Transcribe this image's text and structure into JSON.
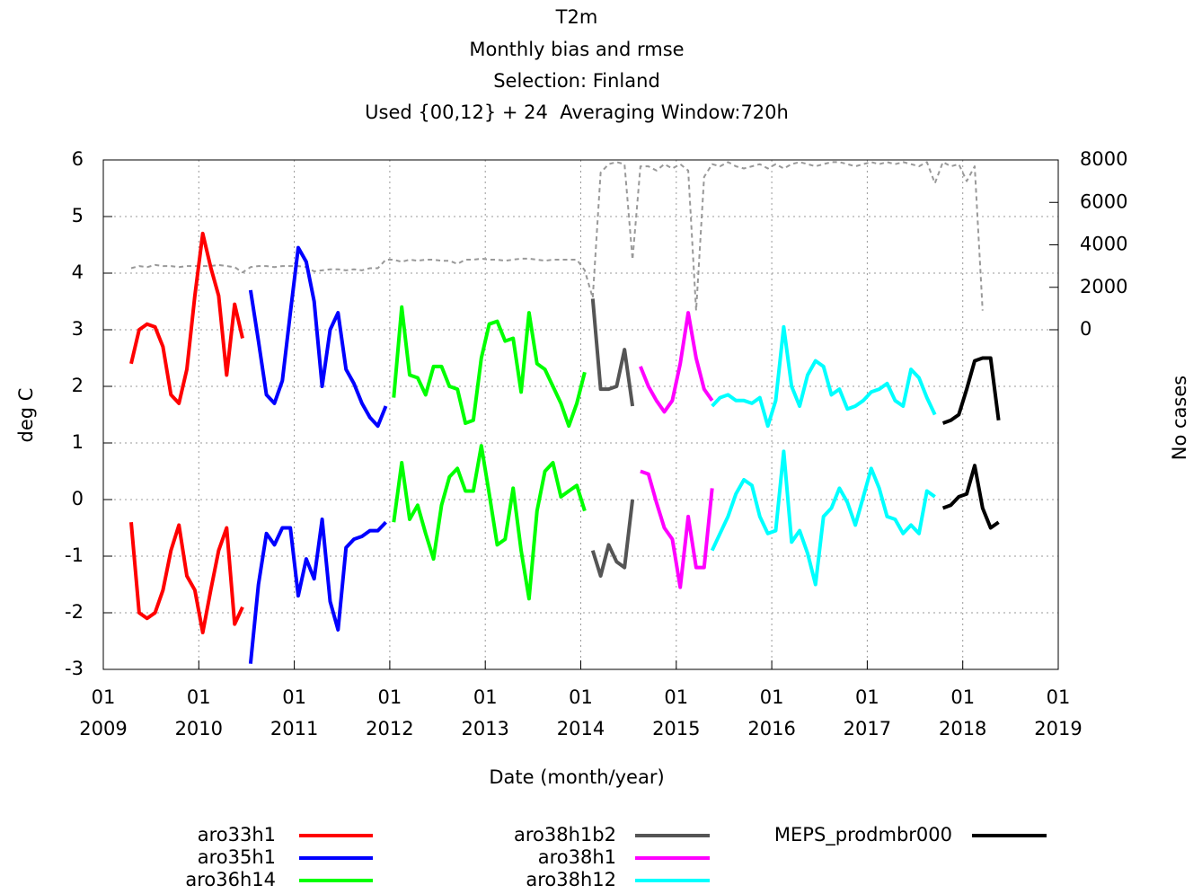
{
  "chart_data": {
    "type": "line",
    "title": [
      "T2m",
      "Monthly bias and rmse",
      "Selection: Finland",
      "Used {00,12} + 24  Averaging Window:720h"
    ],
    "xlabel": "Date (month/year)",
    "ylabel": "deg C",
    "y2label": "No cases",
    "xlim": [
      "2009-01",
      "2019-01"
    ],
    "xticks": [
      {
        "value": "2009-01",
        "label": "01\n2009"
      },
      {
        "value": "2010-01",
        "label": "01\n2010"
      },
      {
        "value": "2011-01",
        "label": "01\n2011"
      },
      {
        "value": "2012-01",
        "label": "01\n2012"
      },
      {
        "value": "2013-01",
        "label": "01\n2013"
      },
      {
        "value": "2014-01",
        "label": "01\n2014"
      },
      {
        "value": "2015-01",
        "label": "01\n2015"
      },
      {
        "value": "2016-01",
        "label": "01\n2016"
      },
      {
        "value": "2017-01",
        "label": "01\n2017"
      },
      {
        "value": "2018-01",
        "label": "01\n2018"
      },
      {
        "value": "2019-01",
        "label": "01\n2019"
      }
    ],
    "ylim": [
      -3,
      6
    ],
    "yticks": [
      -3,
      -2,
      -1,
      0,
      1,
      2,
      3,
      4,
      5,
      6
    ],
    "y2lim": [
      -16000,
      8000
    ],
    "y2ticks": [
      0,
      2000,
      4000,
      6000,
      8000
    ],
    "grid": true,
    "series": [
      {
        "name": "aro33h1",
        "color": "#ff0000",
        "x": [
          "2009-04",
          "2009-05",
          "2009-06",
          "2009-07",
          "2009-08",
          "2009-09",
          "2009-10",
          "2009-11",
          "2009-12",
          "2010-01",
          "2010-02",
          "2010-03",
          "2010-04",
          "2010-05",
          "2010-06"
        ],
        "rmse": [
          2.4,
          3.0,
          3.1,
          3.05,
          2.7,
          1.85,
          1.7,
          2.3,
          3.6,
          4.7,
          4.1,
          3.6,
          2.2,
          3.45,
          2.85
        ],
        "bias": [
          -0.4,
          -2.0,
          -2.1,
          -2.0,
          -1.6,
          -0.9,
          -0.45,
          -1.35,
          -1.6,
          -2.35,
          -1.6,
          -0.9,
          -0.5,
          -2.2,
          -1.9
        ]
      },
      {
        "name": "aro35h1",
        "color": "#0000ff",
        "x": [
          "2010-07",
          "2010-08",
          "2010-09",
          "2010-10",
          "2010-11",
          "2010-12",
          "2011-01",
          "2011-02",
          "2011-03",
          "2011-04",
          "2011-05",
          "2011-06",
          "2011-07",
          "2011-08",
          "2011-09",
          "2011-10",
          "2011-11",
          "2011-12"
        ],
        "rmse": [
          3.7,
          2.8,
          1.85,
          1.7,
          2.1,
          3.3,
          4.45,
          4.2,
          3.5,
          2.0,
          3.0,
          3.3,
          2.3,
          2.05,
          1.7,
          1.45,
          1.3,
          1.65
        ],
        "bias": [
          -2.9,
          -1.5,
          -0.6,
          -0.8,
          -0.5,
          -0.5,
          -1.7,
          -1.05,
          -1.4,
          -0.35,
          -1.8,
          -2.3,
          -0.85,
          -0.7,
          -0.65,
          -0.55,
          -0.55,
          -0.4
        ]
      },
      {
        "name": "aro36h14",
        "color": "#00ff00",
        "x": [
          "2012-01",
          "2012-02",
          "2012-03",
          "2012-04",
          "2012-05",
          "2012-06",
          "2012-07",
          "2012-08",
          "2012-09",
          "2012-10",
          "2012-11",
          "2012-12",
          "2013-01",
          "2013-02",
          "2013-03",
          "2013-04",
          "2013-05",
          "2013-06",
          "2013-07",
          "2013-08",
          "2013-09",
          "2013-10",
          "2013-11",
          "2013-12",
          "2014-01"
        ],
        "rmse": [
          1.8,
          3.4,
          2.2,
          2.15,
          1.85,
          2.35,
          2.35,
          2.0,
          1.95,
          1.35,
          1.4,
          2.5,
          3.1,
          3.15,
          2.8,
          2.85,
          1.9,
          3.3,
          2.4,
          2.3,
          2.0,
          1.7,
          1.3,
          1.7,
          2.25
        ],
        "bias": [
          -0.4,
          0.65,
          -0.35,
          -0.1,
          -0.6,
          -1.05,
          -0.1,
          0.4,
          0.55,
          0.15,
          0.15,
          0.95,
          0.1,
          -0.8,
          -0.7,
          0.2,
          -0.9,
          -1.75,
          -0.2,
          0.5,
          0.65,
          0.05,
          0.15,
          0.25,
          -0.2
        ]
      },
      {
        "name": "aro38h1b2",
        "color": "#555555",
        "x": [
          "2014-02",
          "2014-03",
          "2014-04",
          "2014-05",
          "2014-06",
          "2014-07"
        ],
        "rmse": [
          3.55,
          1.95,
          1.95,
          2.0,
          2.65,
          1.65
        ],
        "bias": [
          -0.9,
          -1.35,
          -0.8,
          -1.1,
          -1.2,
          0.0
        ]
      },
      {
        "name": "aro38h1",
        "color": "#ff00ff",
        "x": [
          "2014-08",
          "2014-09",
          "2014-10",
          "2014-11",
          "2014-12",
          "2015-01",
          "2015-02",
          "2015-03",
          "2015-04",
          "2015-05"
        ],
        "rmse": [
          2.35,
          2.0,
          1.75,
          1.55,
          1.75,
          2.4,
          3.3,
          2.5,
          1.95,
          1.75
        ],
        "bias": [
          0.5,
          0.45,
          -0.05,
          -0.5,
          -0.7,
          -1.55,
          -0.3,
          -1.2,
          -1.2,
          0.2
        ]
      },
      {
        "name": "aro38h12",
        "color": "#00ffff",
        "x": [
          "2015-05",
          "2015-06",
          "2015-07",
          "2015-08",
          "2015-09",
          "2015-10",
          "2015-11",
          "2015-12",
          "2016-01",
          "2016-02",
          "2016-03",
          "2016-04",
          "2016-05",
          "2016-06",
          "2016-07",
          "2016-08",
          "2016-09",
          "2016-10",
          "2016-11",
          "2016-12",
          "2017-01",
          "2017-02",
          "2017-03",
          "2017-04",
          "2017-05",
          "2017-06",
          "2017-07",
          "2017-08",
          "2017-09"
        ],
        "rmse": [
          1.65,
          1.8,
          1.85,
          1.75,
          1.75,
          1.7,
          1.8,
          1.3,
          1.75,
          3.05,
          2.0,
          1.65,
          2.2,
          2.45,
          2.35,
          1.85,
          1.95,
          1.6,
          1.65,
          1.75,
          1.9,
          1.95,
          2.05,
          1.75,
          1.65,
          2.3,
          2.15,
          1.8,
          1.5
        ],
        "bias": [
          -0.9,
          -0.6,
          -0.3,
          0.1,
          0.35,
          0.25,
          -0.3,
          -0.6,
          -0.55,
          0.85,
          -0.75,
          -0.55,
          -0.95,
          -1.5,
          -0.3,
          -0.15,
          0.2,
          -0.05,
          -0.45,
          0.05,
          0.55,
          0.2,
          -0.3,
          -0.35,
          -0.6,
          -0.45,
          -0.6,
          0.15,
          0.05
        ]
      },
      {
        "name": "MEPS_prodmbr000",
        "color": "#000000",
        "x": [
          "2017-10",
          "2017-11",
          "2017-12",
          "2018-01",
          "2018-02",
          "2018-03",
          "2018-04",
          "2018-05"
        ],
        "rmse": [
          1.35,
          1.4,
          1.5,
          1.95,
          2.45,
          2.5,
          2.5,
          1.4
        ],
        "bias": [
          -0.15,
          -0.1,
          0.05,
          0.1,
          0.6,
          -0.15,
          -0.5,
          -0.4
        ]
      }
    ],
    "cases": {
      "axis": "y2",
      "color": "#999999",
      "x": [
        "2009-04",
        "2009-05",
        "2009-06",
        "2009-07",
        "2009-08",
        "2009-09",
        "2009-10",
        "2009-11",
        "2009-12",
        "2010-01",
        "2010-02",
        "2010-03",
        "2010-04",
        "2010-05",
        "2010-06",
        "2010-07",
        "2010-08",
        "2010-09",
        "2010-10",
        "2010-11",
        "2010-12",
        "2011-01",
        "2011-02",
        "2011-03",
        "2011-04",
        "2011-05",
        "2011-06",
        "2011-07",
        "2011-08",
        "2011-09",
        "2011-10",
        "2011-11",
        "2011-12",
        "2012-01",
        "2012-02",
        "2012-03",
        "2012-04",
        "2012-05",
        "2012-06",
        "2012-07",
        "2012-08",
        "2012-09",
        "2012-10",
        "2012-11",
        "2012-12",
        "2013-01",
        "2013-02",
        "2013-03",
        "2013-04",
        "2013-05",
        "2013-06",
        "2013-07",
        "2013-08",
        "2013-09",
        "2013-10",
        "2013-11",
        "2013-12",
        "2014-01",
        "2014-02",
        "2014-03",
        "2014-04",
        "2014-05",
        "2014-06",
        "2014-07",
        "2014-08",
        "2014-09",
        "2014-10",
        "2014-11",
        "2014-12",
        "2015-01",
        "2015-02",
        "2015-03",
        "2015-04",
        "2015-05",
        "2015-06",
        "2015-07",
        "2015-08",
        "2015-09",
        "2015-10",
        "2015-11",
        "2015-12",
        "2016-01",
        "2016-02",
        "2016-03",
        "2016-04",
        "2016-05",
        "2016-06",
        "2016-07",
        "2016-08",
        "2016-09",
        "2016-10",
        "2016-11",
        "2016-12",
        "2017-01",
        "2017-02",
        "2017-03",
        "2017-04",
        "2017-05",
        "2017-06",
        "2017-07",
        "2017-08",
        "2017-09",
        "2017-10",
        "2017-11",
        "2017-12",
        "2018-01",
        "2018-02",
        "2018-03"
      ],
      "values": [
        2900,
        3000,
        2950,
        3050,
        3000,
        3000,
        2950,
        3000,
        3000,
        3000,
        3000,
        3050,
        3000,
        2950,
        2700,
        2950,
        3000,
        3000,
        2950,
        3000,
        3000,
        3000,
        2950,
        2750,
        2800,
        2850,
        2850,
        2800,
        2850,
        2800,
        2900,
        2900,
        3300,
        3300,
        3200,
        3300,
        3250,
        3300,
        3300,
        3250,
        3250,
        3100,
        3300,
        3300,
        3350,
        3300,
        3300,
        3250,
        3300,
        3350,
        3350,
        3300,
        3250,
        3300,
        3300,
        3300,
        3300,
        2800,
        1500,
        7400,
        7800,
        7900,
        7800,
        3300,
        7700,
        7700,
        7500,
        7800,
        7600,
        7800,
        7500,
        900,
        7200,
        7800,
        7700,
        7900,
        7700,
        7600,
        7700,
        7800,
        7600,
        7800,
        7600,
        7800,
        7900,
        7800,
        7700,
        7800,
        7900,
        7900,
        7800,
        7700,
        7800,
        7900,
        7800,
        7900,
        7800,
        7900,
        7800,
        7700,
        7900,
        6900,
        7900,
        7700,
        7800,
        7000,
        7700,
        900
      ]
    }
  }
}
